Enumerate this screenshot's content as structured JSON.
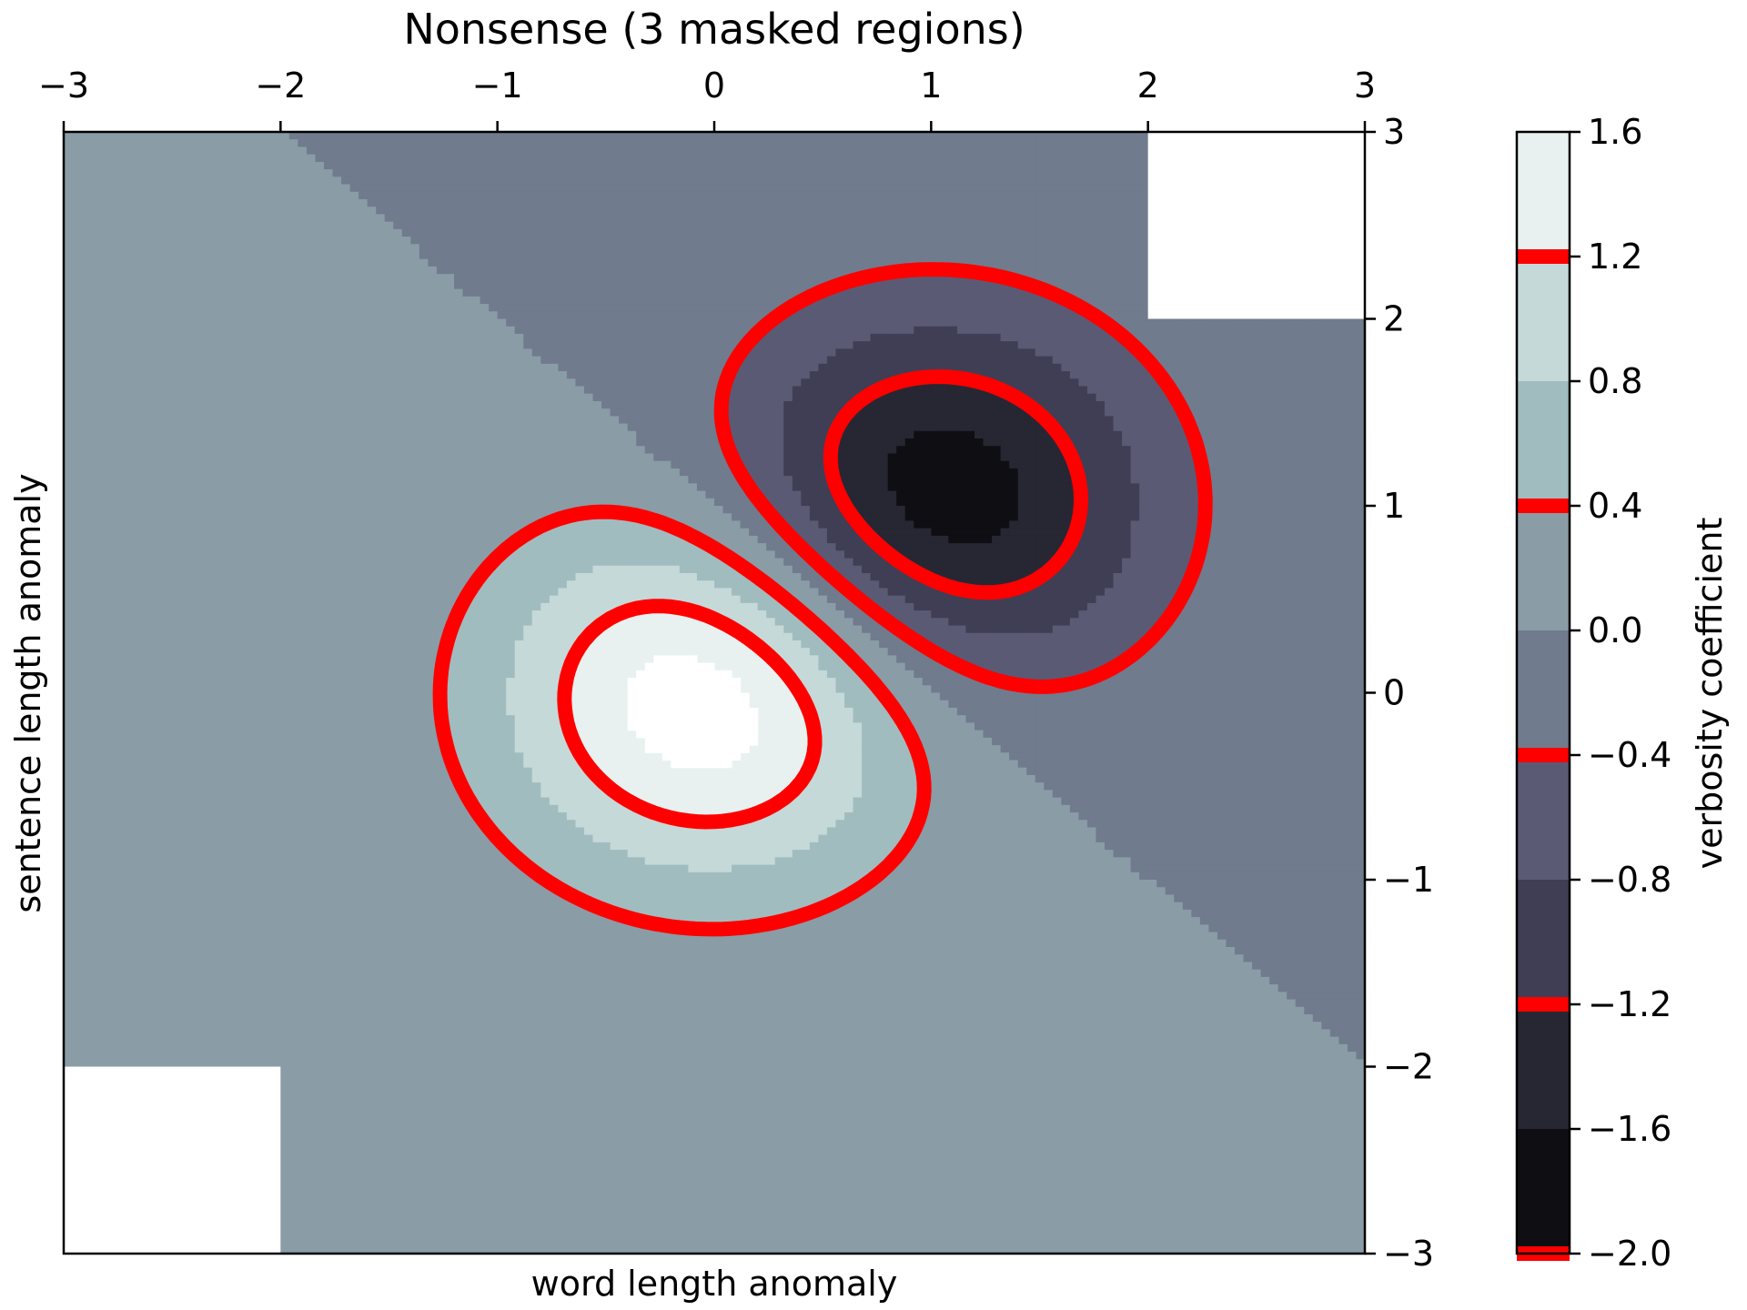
{
  "chart_data": {
    "type": "contour",
    "title": "Nonsense (3 masked regions)",
    "xlabel": "word length anomaly",
    "ylabel": "sentence length anomaly",
    "xlim": [
      -3,
      3
    ],
    "ylim": [
      -3,
      3
    ],
    "x_ticks": [
      -3,
      -2,
      -1,
      0,
      1,
      2,
      3
    ],
    "x_tick_labels": [
      "−3",
      "−2",
      "−1",
      "0",
      "1",
      "2",
      "3"
    ],
    "y_ticks": [
      -3,
      -2,
      -1,
      0,
      1,
      2,
      3
    ],
    "y_tick_labels": [
      "−3",
      "−2",
      "−1",
      "0",
      "1",
      "2",
      "3"
    ],
    "x_axis_position": "top",
    "y_axis_position": "right",
    "grid": false,
    "colormap": "bone",
    "filled_levels": [
      -2.0,
      -1.6,
      -1.2,
      -0.8,
      -0.4,
      0.0,
      0.4,
      0.8,
      1.2,
      1.6
    ],
    "band_colors": [
      "#0f0e13",
      "#272733",
      "#3f3e54",
      "#5a5a75",
      "#707b8d",
      "#8a9ca6",
      "#a1bcbf",
      "#c5d9d8",
      "#e8f1f0"
    ],
    "contour_line_levels": [
      -2.0,
      -1.2,
      -0.4,
      0.4,
      1.2
    ],
    "contour_line_color": "#ff0000",
    "masked_regions": [
      {
        "x": [
          -3,
          -2
        ],
        "y": [
          -3,
          -2
        ]
      },
      {
        "x": [
          2,
          3
        ],
        "y": [
          2,
          3
        ]
      },
      {
        "x": [
          -0.5,
          0.5
        ],
        "y": [
          -0.5,
          0.5
        ],
        "note": "values above 1.6"
      }
    ],
    "field_extrema": [
      {
        "x": 0,
        "y": 0,
        "value": 1.9
      },
      {
        "x": 1.1,
        "y": 1.1,
        "value": -1.95
      }
    ],
    "colorbar": {
      "label": "verbosity coefficient",
      "ticks": [
        1.6,
        1.2,
        0.8,
        0.4,
        0.0,
        -0.4,
        -0.8,
        -1.2,
        -1.6,
        -2.0
      ],
      "tick_labels": [
        "1.6",
        "1.2",
        "0.8",
        "0.4",
        "0.0",
        "−0.4",
        "−0.8",
        "−1.2",
        "−1.6",
        "−2.0"
      ]
    }
  }
}
